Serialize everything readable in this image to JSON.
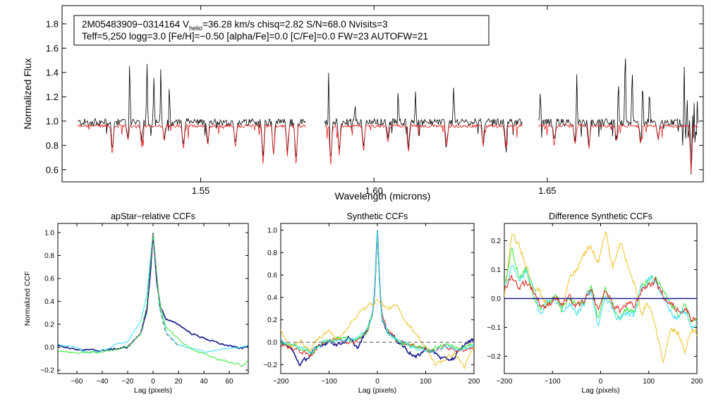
{
  "colors": {
    "observed": "#000000",
    "model": "#e41a1c",
    "navy": "#1b1b8c",
    "cyan": "#36e0f0",
    "green": "#39e639",
    "red": "#e02020",
    "orange": "#f0c020",
    "dashed": "#777777"
  },
  "chart_data": [
    {
      "type": "line",
      "id": "spectrum",
      "title": "",
      "header_line1_parts": [
        "2M05483909−0314164  V",
        "helio",
        "=36.28 km/s  chisq=2.82  S/N=68.0  Nvisits=3"
      ],
      "header_line2": "Teff=5,250 logg=3.0 [Fe/H]=−0.50 [alpha/Fe]=0.0 [C/Fe]=0.0 FW=23 AUTOFW=21",
      "xlabel": "Wavelength (microns)",
      "ylabel": "Normalized Flux",
      "xlim": [
        1.51,
        1.695
      ],
      "ylim": [
        0.5,
        1.95
      ],
      "xticks": [
        1.55,
        1.6,
        1.65
      ],
      "xtick_labels": [
        "1.55",
        "1.60",
        "1.65"
      ],
      "yticks": [
        0.6,
        0.8,
        1.0,
        1.2,
        1.4,
        1.6,
        1.8
      ],
      "ytick_labels": [
        "0.6",
        "0.8",
        "1.0",
        "1.2",
        "1.4",
        "1.6",
        "1.8"
      ],
      "chips": [
        [
          1.5145,
          1.5805
        ],
        [
          1.5858,
          1.6428
        ],
        [
          1.6475,
          1.6935
        ]
      ],
      "series": [
        {
          "name": "observed",
          "continuum": 0.99,
          "emission": [
            [
              1.5295,
              1.55
            ],
            [
              1.5345,
              1.53
            ],
            [
              1.5365,
              1.38
            ],
            [
              1.5385,
              1.46
            ],
            [
              1.541,
              1.41
            ],
            [
              1.587,
              1.57
            ],
            [
              1.5945,
              1.17
            ],
            [
              1.607,
              1.28
            ],
            [
              1.612,
              1.26
            ],
            [
              1.623,
              1.31
            ],
            [
              1.644,
              1.36
            ],
            [
              1.648,
              1.25
            ],
            [
              1.6585,
              1.43
            ],
            [
              1.6705,
              1.41
            ],
            [
              1.6725,
              1.7
            ],
            [
              1.6745,
              1.47
            ],
            [
              1.6775,
              1.44
            ],
            [
              1.6795,
              1.3
            ],
            [
              1.6895,
              1.6
            ]
          ]
        },
        {
          "name": "model",
          "continuum": 0.96,
          "absorption": [
            [
              1.5245,
              0.7
            ],
            [
              1.529,
              0.84
            ],
            [
              1.533,
              0.78
            ],
            [
              1.5395,
              0.82
            ],
            [
              1.545,
              0.75
            ],
            [
              1.552,
              0.79
            ],
            [
              1.56,
              0.77
            ],
            [
              1.568,
              0.63
            ],
            [
              1.571,
              0.71
            ],
            [
              1.575,
              0.7
            ],
            [
              1.5775,
              0.6
            ],
            [
              1.5875,
              0.62
            ],
            [
              1.59,
              0.72
            ],
            [
              1.597,
              0.74
            ],
            [
              1.604,
              0.82
            ],
            [
              1.61,
              0.76
            ],
            [
              1.621,
              0.8
            ],
            [
              1.6315,
              0.78
            ],
            [
              1.638,
              0.76
            ],
            [
              1.652,
              0.78
            ],
            [
              1.658,
              0.79
            ],
            [
              1.662,
              0.76
            ],
            [
              1.67,
              0.82
            ],
            [
              1.677,
              0.83
            ],
            [
              1.682,
              0.85
            ],
            [
              1.6915,
              0.58
            ]
          ]
        }
      ]
    },
    {
      "type": "line",
      "id": "apstar_ccf",
      "title": "apStar−relative CCFs",
      "xlabel": "Lag (pixels)",
      "ylabel": "Normalized CCF",
      "xlim": [
        -75,
        75
      ],
      "ylim": [
        -0.23,
        1.08
      ],
      "xticks": [
        -60,
        -40,
        -20,
        0,
        20,
        40,
        60
      ],
      "xtick_labels": [
        "−60",
        "−40",
        "−20",
        "0",
        "20",
        "40",
        "60"
      ],
      "yticks": [
        -0.2,
        0.0,
        0.2,
        0.4,
        0.6,
        0.8,
        1.0
      ],
      "ytick_labels": [
        "−0.2",
        "0.0",
        "0.2",
        "0.4",
        "0.6",
        "0.8",
        "1.0"
      ],
      "series": [
        {
          "name": "navy",
          "x": [
            -75,
            -60,
            -40,
            -20,
            -10,
            -5,
            -2,
            0,
            3,
            6,
            10,
            15,
            20,
            30,
            40,
            50,
            60,
            70,
            75
          ],
          "y": [
            0.02,
            -0.02,
            -0.03,
            0.0,
            0.12,
            0.3,
            0.65,
            1.0,
            0.55,
            0.35,
            0.25,
            0.22,
            0.2,
            0.12,
            0.08,
            0.04,
            0.01,
            -0.01,
            0.01
          ]
        },
        {
          "name": "cyan",
          "x": [
            -75,
            -60,
            -50,
            -40,
            -30,
            -20,
            -10,
            -5,
            0,
            5,
            10,
            15,
            20,
            30,
            40,
            50,
            60,
            70,
            75
          ],
          "y": [
            0.03,
            -0.01,
            -0.05,
            -0.03,
            0.02,
            0.05,
            0.22,
            0.45,
            1.0,
            0.35,
            0.15,
            0.07,
            0.02,
            -0.01,
            -0.04,
            -0.03,
            -0.01,
            0.0,
            0.02
          ]
        },
        {
          "name": "green",
          "x": [
            -75,
            -60,
            -40,
            -20,
            -10,
            -5,
            0,
            5,
            10,
            20,
            30,
            40,
            50,
            60,
            70,
            75
          ],
          "y": [
            -0.03,
            -0.05,
            -0.04,
            0.0,
            0.12,
            0.35,
            1.0,
            0.4,
            0.18,
            0.07,
            -0.01,
            -0.06,
            -0.1,
            -0.13,
            -0.16,
            -0.12
          ]
        },
        {
          "name": "dashed",
          "dashed": true,
          "x": [
            -20,
            -10,
            -5,
            0,
            5,
            10,
            20
          ],
          "y": [
            0.01,
            0.12,
            0.35,
            1.0,
            0.35,
            0.12,
            0.01
          ]
        }
      ]
    },
    {
      "type": "line",
      "id": "synthetic_ccf",
      "title": "Synthetic CCFs",
      "xlabel": "Lag (pixels)",
      "ylabel": "",
      "xlim": [
        -200,
        200
      ],
      "ylim": [
        -0.28,
        1.06
      ],
      "xticks": [
        -200,
        -100,
        0,
        100,
        200
      ],
      "xtick_labels": [
        "−200",
        "−100",
        "0",
        "100",
        "200"
      ],
      "yticks": [
        -0.2,
        0.0,
        0.2,
        0.4,
        0.6,
        0.8,
        1.0
      ],
      "ytick_labels": [
        "−0.2",
        "0.0",
        "0.2",
        "0.4",
        "0.6",
        "0.8",
        "1.0"
      ],
      "baseline": 0.0,
      "series": [
        {
          "name": "navy",
          "x": [
            -200,
            -180,
            -160,
            -140,
            -120,
            -100,
            -80,
            -60,
            -40,
            -20,
            -10,
            -5,
            0,
            5,
            10,
            20,
            40,
            60,
            80,
            100,
            120,
            140,
            160,
            180,
            200
          ],
          "y": [
            0.0,
            -0.05,
            -0.2,
            -0.12,
            -0.03,
            0.01,
            -0.02,
            0.03,
            -0.05,
            0.12,
            0.25,
            0.5,
            1.0,
            0.5,
            0.22,
            0.1,
            0.02,
            -0.06,
            -0.14,
            -0.06,
            -0.1,
            -0.16,
            -0.14,
            -0.02,
            0.03
          ]
        },
        {
          "name": "red",
          "x": [
            -200,
            -170,
            -140,
            -110,
            -80,
            -50,
            -20,
            -10,
            -5,
            0,
            5,
            10,
            20,
            50,
            80,
            110,
            140,
            170,
            200
          ],
          "y": [
            -0.02,
            -0.06,
            -0.12,
            0.01,
            0.03,
            0.0,
            0.1,
            0.25,
            0.5,
            1.0,
            0.5,
            0.24,
            0.11,
            0.0,
            -0.03,
            -0.08,
            -0.04,
            -0.08,
            -0.04
          ]
        },
        {
          "name": "green",
          "x": [
            -200,
            -170,
            -140,
            -110,
            -80,
            -50,
            -20,
            -10,
            -5,
            0,
            5,
            10,
            20,
            50,
            80,
            110,
            140,
            170,
            200
          ],
          "y": [
            0.0,
            -0.04,
            -0.1,
            0.0,
            0.04,
            0.01,
            0.1,
            0.24,
            0.5,
            1.0,
            0.5,
            0.22,
            0.1,
            -0.01,
            -0.04,
            -0.06,
            -0.02,
            -0.06,
            -0.02
          ]
        },
        {
          "name": "cyan",
          "x": [
            -200,
            -170,
            -140,
            -110,
            -80,
            -50,
            -20,
            -10,
            -5,
            0,
            5,
            10,
            20,
            50,
            80,
            110,
            140,
            170,
            200
          ],
          "y": [
            0.01,
            -0.03,
            -0.09,
            0.01,
            0.02,
            0.02,
            0.11,
            0.26,
            0.5,
            1.0,
            0.48,
            0.2,
            0.08,
            0.0,
            -0.05,
            -0.09,
            -0.03,
            -0.07,
            -0.03
          ]
        },
        {
          "name": "orange",
          "x": [
            -200,
            -180,
            -160,
            -140,
            -120,
            -100,
            -80,
            -60,
            -40,
            -20,
            0,
            20,
            40,
            60,
            80,
            100,
            120,
            140,
            160,
            180,
            200
          ],
          "y": [
            0.1,
            -0.05,
            0.02,
            -0.08,
            0.05,
            0.1,
            0.02,
            0.15,
            0.25,
            0.32,
            0.38,
            0.3,
            0.32,
            0.18,
            0.08,
            -0.05,
            -0.2,
            -0.15,
            -0.1,
            -0.22,
            -0.05
          ]
        },
        {
          "name": "dashed",
          "dashed": true,
          "x": [
            -200,
            200
          ],
          "y": [
            0.0,
            0.0
          ]
        }
      ]
    },
    {
      "type": "line",
      "id": "difference_ccf",
      "title": "Difference Synthetic CCFs",
      "xlabel": "Lag (pixels)",
      "ylabel": "",
      "xlim": [
        -200,
        200
      ],
      "ylim": [
        -0.26,
        0.26
      ],
      "xticks": [
        -200,
        -100,
        0,
        100,
        200
      ],
      "xtick_labels": [
        "−200",
        "−100",
        "0",
        "100",
        "200"
      ],
      "yticks": [
        -0.2,
        -0.1,
        0.0,
        0.1,
        0.2
      ],
      "ytick_labels": [
        "−0.2",
        "−0.1",
        "0.0",
        "0.1",
        "0.2"
      ],
      "baseline": 0.0,
      "series": [
        {
          "name": "orange",
          "x": [
            -200,
            -185,
            -170,
            -155,
            -140,
            -125,
            -110,
            -95,
            -80,
            -65,
            -50,
            -35,
            -20,
            -5,
            10,
            25,
            40,
            55,
            70,
            85,
            100,
            115,
            130,
            145,
            160,
            175,
            190,
            200
          ],
          "y": [
            0.0,
            0.22,
            0.18,
            0.12,
            0.05,
            0.02,
            -0.02,
            0.0,
            -0.02,
            0.06,
            0.1,
            0.15,
            0.18,
            0.12,
            0.24,
            0.1,
            0.2,
            0.12,
            0.05,
            -0.05,
            -0.02,
            -0.1,
            -0.22,
            -0.1,
            -0.12,
            -0.18,
            -0.1,
            -0.12
          ]
        },
        {
          "name": "green",
          "x": [
            -200,
            -185,
            -170,
            -155,
            -140,
            -125,
            -110,
            -95,
            -80,
            -65,
            -50,
            -35,
            -20,
            -5,
            10,
            25,
            40,
            55,
            70,
            85,
            100,
            115,
            130,
            145,
            160,
            175,
            190,
            200
          ],
          "y": [
            0.05,
            0.17,
            0.08,
            0.1,
            0.02,
            -0.03,
            -0.02,
            0.01,
            -0.04,
            0.0,
            -0.02,
            -0.02,
            0.05,
            -0.07,
            0.03,
            -0.02,
            -0.06,
            -0.03,
            -0.05,
            0.04,
            0.06,
            0.07,
            0.02,
            -0.02,
            -0.05,
            -0.03,
            -0.08,
            -0.07
          ]
        },
        {
          "name": "cyan",
          "x": [
            -200,
            -185,
            -170,
            -155,
            -140,
            -125,
            -110,
            -95,
            -80,
            -65,
            -50,
            -35,
            -20,
            -5,
            10,
            25,
            40,
            55,
            70,
            85,
            100,
            115,
            130,
            145,
            160,
            175,
            190,
            200
          ],
          "y": [
            0.02,
            0.12,
            0.06,
            0.09,
            0.04,
            -0.06,
            -0.02,
            0.0,
            -0.04,
            -0.02,
            -0.05,
            -0.02,
            0.03,
            -0.1,
            0.02,
            -0.04,
            -0.07,
            -0.05,
            -0.06,
            0.04,
            0.07,
            0.06,
            0.01,
            -0.04,
            -0.07,
            -0.05,
            -0.1,
            -0.08
          ]
        },
        {
          "name": "red",
          "x": [
            -200,
            -185,
            -170,
            -155,
            -140,
            -125,
            -110,
            -95,
            -80,
            -65,
            -50,
            -35,
            -20,
            -5,
            10,
            25,
            40,
            55,
            70,
            85,
            100,
            115,
            130,
            145,
            160,
            175,
            190,
            200
          ],
          "y": [
            0.02,
            0.08,
            0.04,
            0.06,
            0.03,
            -0.02,
            -0.03,
            0.01,
            -0.02,
            0.0,
            -0.03,
            -0.01,
            0.02,
            -0.04,
            0.03,
            -0.02,
            -0.04,
            -0.02,
            -0.03,
            0.03,
            0.05,
            0.06,
            0.01,
            -0.02,
            -0.04,
            -0.03,
            -0.07,
            -0.06
          ]
        },
        {
          "name": "navy",
          "x": [
            -200,
            200
          ],
          "y": [
            0.0,
            0.0
          ]
        }
      ]
    }
  ]
}
